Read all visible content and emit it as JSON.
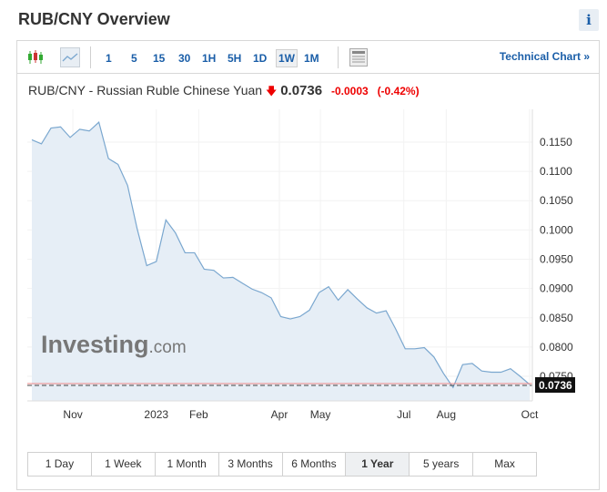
{
  "header": {
    "title": "RUB/CNY Overview",
    "info_label": "i"
  },
  "toolbar": {
    "intervals": [
      "1",
      "5",
      "15",
      "30",
      "1H",
      "5H",
      "1D",
      "1W",
      "1M"
    ],
    "active_interval": "1W",
    "technical_chart": "Technical Chart »"
  },
  "quote": {
    "name": "RUB/CNY - Russian Ruble Chinese Yuan",
    "direction": "down",
    "price": "0.0736",
    "change": "-0.0003",
    "change_pct": "(-0.42%)"
  },
  "colors": {
    "line": "#7aa7cf",
    "fill": "#e6eef6",
    "down": "#e00000",
    "link": "#1a5ea8"
  },
  "watermark": "Investing.com",
  "chart_data": {
    "type": "area",
    "x": [
      "2022-10-02",
      "2022-10-09",
      "2022-10-16",
      "2022-10-23",
      "2022-10-30",
      "2022-11-06",
      "2022-11-13",
      "2022-11-20",
      "2022-11-27",
      "2022-12-04",
      "2022-12-11",
      "2022-12-18",
      "2022-12-25",
      "2023-01-01",
      "2023-01-08",
      "2023-01-15",
      "2023-01-22",
      "2023-01-29",
      "2023-02-05",
      "2023-02-12",
      "2023-02-19",
      "2023-02-26",
      "2023-03-05",
      "2023-03-12",
      "2023-03-19",
      "2023-03-26",
      "2023-04-02",
      "2023-04-09",
      "2023-04-16",
      "2023-04-23",
      "2023-04-30",
      "2023-05-07",
      "2023-05-14",
      "2023-05-21",
      "2023-05-28",
      "2023-06-04",
      "2023-06-11",
      "2023-06-18",
      "2023-06-25",
      "2023-07-02",
      "2023-07-09",
      "2023-07-16",
      "2023-07-23",
      "2023-07-30",
      "2023-08-06",
      "2023-08-13",
      "2023-08-20",
      "2023-08-27",
      "2023-09-03",
      "2023-09-10",
      "2023-09-17",
      "2023-09-24",
      "2023-10-01"
    ],
    "values": [
      0.1154,
      0.1147,
      0.1174,
      0.1176,
      0.1158,
      0.1172,
      0.1169,
      0.1184,
      0.1122,
      0.1112,
      0.1076,
      0.1002,
      0.0939,
      0.0946,
      0.1017,
      0.0995,
      0.0961,
      0.0961,
      0.0933,
      0.0931,
      0.0918,
      0.0919,
      0.0909,
      0.0899,
      0.0893,
      0.0884,
      0.0852,
      0.0848,
      0.0852,
      0.0863,
      0.0893,
      0.0903,
      0.088,
      0.0898,
      0.0882,
      0.0867,
      0.0858,
      0.0862,
      0.0831,
      0.0797,
      0.0797,
      0.0799,
      0.0783,
      0.0755,
      0.0731,
      0.077,
      0.0772,
      0.0759,
      0.0757,
      0.0757,
      0.0763,
      0.075,
      0.0736
    ],
    "x_ticks": [
      {
        "date": "2022-11-01",
        "label": "Nov"
      },
      {
        "date": "2023-01-01",
        "label": "2023"
      },
      {
        "date": "2023-02-01",
        "label": "Feb"
      },
      {
        "date": "2023-04-01",
        "label": "Apr"
      },
      {
        "date": "2023-05-01",
        "label": "May"
      },
      {
        "date": "2023-07-01",
        "label": "Jul"
      },
      {
        "date": "2023-08-01",
        "label": "Aug"
      },
      {
        "date": "2023-10-01",
        "label": "Oct"
      }
    ],
    "y_ticks": [
      "0.1150",
      "0.1100",
      "0.1050",
      "0.1000",
      "0.0950",
      "0.0900",
      "0.0850",
      "0.0800",
      "0.0750"
    ],
    "ylim": [
      0.0708,
      0.1206
    ],
    "last_value_label": "0.0736",
    "grid": true
  },
  "ranges": {
    "items": [
      "1 Day",
      "1 Week",
      "1 Month",
      "3 Months",
      "6 Months",
      "1 Year",
      "5 years",
      "Max"
    ],
    "active": "1 Year"
  }
}
